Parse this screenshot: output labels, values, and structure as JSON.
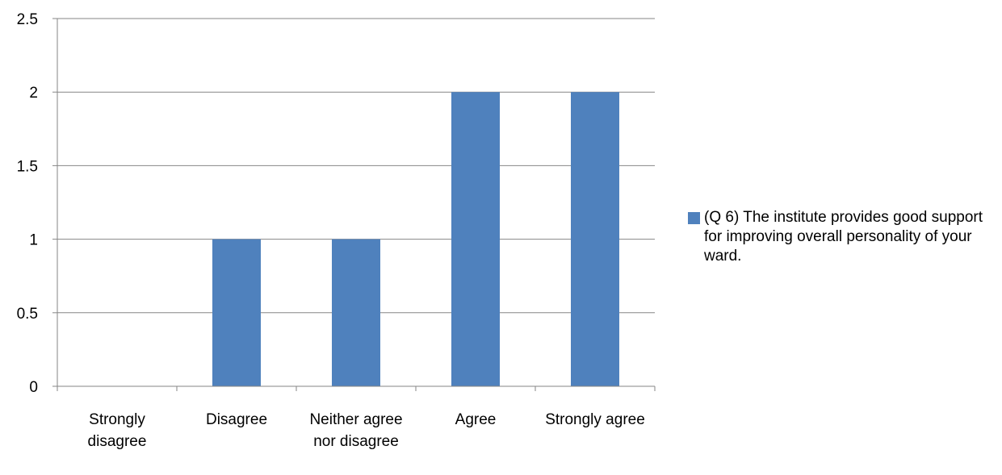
{
  "chart_data": {
    "type": "bar",
    "categories": [
      "Strongly disagree",
      "Disagree",
      "Neither agree nor disagree",
      "Agree",
      "Strongly agree"
    ],
    "series": [
      {
        "name": "(Q 6) The institute provides good support for improving overall personality of your ward.",
        "values": [
          0,
          1,
          1,
          2,
          2
        ],
        "color": "#4F81BD"
      }
    ],
    "yticks": [
      "0",
      "0.5",
      "1",
      "1.5",
      "2",
      "2.5"
    ],
    "ylim": [
      0,
      2.5
    ],
    "grid": true,
    "gridColor": "#868686",
    "legend_position": "right"
  }
}
